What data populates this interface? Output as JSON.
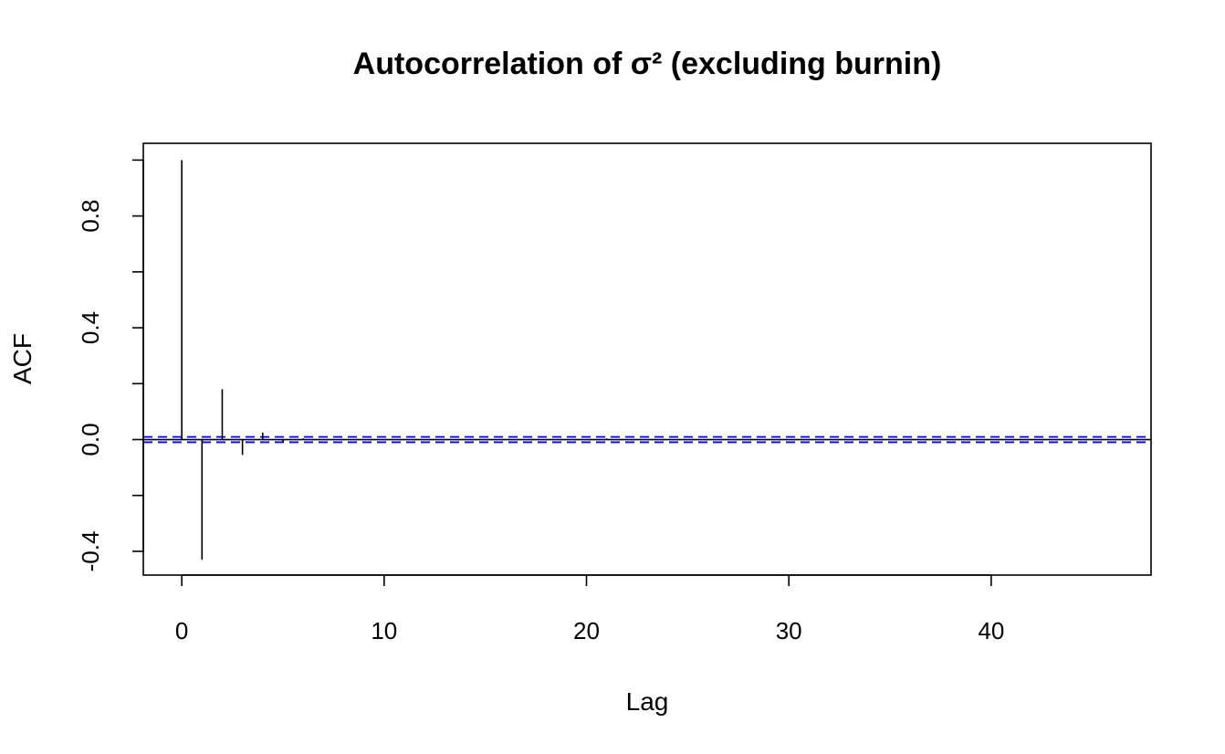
{
  "chart_data": {
    "type": "bar",
    "title": "Autocorrelation of σ² (excluding burnin)",
    "xlabel": "Lag",
    "ylabel": "ACF",
    "xlim": [
      -1.9,
      47.9
    ],
    "ylim": [
      -0.485,
      1.06
    ],
    "xticks": [
      0,
      10,
      20,
      30,
      40
    ],
    "xtick_labels": [
      "0",
      "10",
      "20",
      "30",
      "40"
    ],
    "yticks": [
      -0.4,
      -0.2,
      0.0,
      0.2,
      0.4,
      0.6,
      0.8,
      1.0
    ],
    "ytick_labels": [
      "-0.4",
      "",
      "0.0",
      "",
      "0.4",
      "",
      "0.8",
      ""
    ],
    "grid": false,
    "series": [
      {
        "x": [
          0,
          1,
          2,
          3,
          4,
          5,
          6,
          7,
          8,
          9,
          10,
          11,
          12,
          13,
          14,
          15,
          16,
          17,
          18,
          19,
          20,
          21,
          22,
          23,
          24,
          25,
          26,
          27,
          28,
          29,
          30,
          31,
          32,
          33,
          34,
          35,
          36,
          37,
          38,
          39,
          40,
          41,
          42,
          43,
          44,
          45,
          46
        ],
        "values": [
          1.0,
          -0.43,
          0.18,
          -0.055,
          0.025,
          -0.01,
          0.004,
          -0.002,
          0.002,
          -0.001,
          0.001,
          0.0,
          0.0,
          0.0,
          0.0,
          0.0,
          0.0,
          0.0,
          0.0,
          0.0,
          0.0,
          0.004,
          0.0,
          0.0,
          0.0,
          0.0,
          0.0,
          0.0,
          0.0,
          0.0,
          0.0,
          0.0,
          0.0,
          0.0,
          0.0,
          0.0,
          0.0,
          0.0,
          0.0,
          0.0,
          0.0,
          0.0,
          0.0,
          0.0,
          0.0,
          0.0,
          0.0
        ],
        "color": "#000000"
      }
    ],
    "confidence_band": {
      "values": [
        0.0095,
        -0.0095
      ],
      "color": "#0000ff",
      "style": "dashed"
    },
    "zero_line": 0.0
  }
}
